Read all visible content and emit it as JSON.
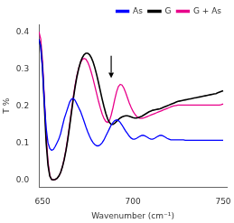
{
  "chart_data": {
    "type": "line",
    "xlabel": "Wavenumber (cm⁻¹)",
    "ylabel": "T %",
    "xlim": [
      648,
      752
    ],
    "ylim": [
      -0.02,
      0.42
    ],
    "xticks": [
      650,
      700,
      750
    ],
    "yticks": [
      {
        "value": 0.0,
        "label": "0.0"
      },
      0.1,
      0.2,
      0.3,
      0.4
    ],
    "grid": false,
    "legend": "upper right",
    "arrow": {
      "x": 688,
      "y_start": 0.335,
      "y_end": 0.275
    },
    "x": [
      648,
      649,
      650,
      651,
      652,
      653,
      654,
      655,
      656,
      657,
      658,
      659,
      660,
      661,
      662,
      663,
      664,
      665,
      666,
      667,
      668,
      669,
      670,
      671,
      672,
      673,
      674,
      675,
      676,
      677,
      678,
      679,
      680,
      681,
      682,
      683,
      684,
      685,
      686,
      687,
      688,
      689,
      690,
      691,
      692,
      693,
      694,
      695,
      696,
      697,
      698,
      699,
      700,
      701,
      702,
      703,
      704,
      705,
      706,
      707,
      708,
      709,
      710,
      711,
      712,
      713,
      714,
      715,
      716,
      717,
      718,
      719,
      720,
      721,
      722,
      723,
      724,
      725,
      726,
      727,
      728,
      729,
      730,
      731,
      732,
      733,
      734,
      735,
      736,
      737,
      738,
      739,
      740,
      741,
      742,
      743,
      744,
      745,
      746,
      747,
      748,
      749,
      750
    ],
    "series": [
      {
        "name": "As",
        "color": "#0000ff",
        "values": [
          0.38,
          0.36,
          0.3,
          0.21,
          0.14,
          0.1,
          0.085,
          0.08,
          0.082,
          0.09,
          0.1,
          0.11,
          0.125,
          0.145,
          0.165,
          0.18,
          0.195,
          0.21,
          0.218,
          0.22,
          0.215,
          0.205,
          0.195,
          0.185,
          0.172,
          0.158,
          0.143,
          0.13,
          0.118,
          0.108,
          0.1,
          0.095,
          0.092,
          0.092,
          0.095,
          0.1,
          0.108,
          0.118,
          0.128,
          0.138,
          0.148,
          0.155,
          0.16,
          0.162,
          0.16,
          0.155,
          0.148,
          0.14,
          0.132,
          0.125,
          0.118,
          0.113,
          0.11,
          0.11,
          0.112,
          0.115,
          0.118,
          0.12,
          0.12,
          0.118,
          0.115,
          0.112,
          0.11,
          0.11,
          0.112,
          0.115,
          0.118,
          0.12,
          0.12,
          0.118,
          0.115,
          0.112,
          0.11,
          0.108,
          0.108,
          0.108,
          0.108,
          0.108,
          0.108,
          0.108,
          0.108,
          0.107,
          0.107,
          0.107,
          0.107,
          0.107,
          0.107,
          0.107,
          0.107,
          0.107,
          0.107,
          0.107,
          0.107,
          0.107,
          0.107,
          0.107,
          0.107,
          0.107,
          0.107,
          0.107,
          0.107,
          0.107,
          0.107
        ]
      },
      {
        "name": "G",
        "color": "#000000",
        "values": [
          0.38,
          0.36,
          0.3,
          0.2,
          0.1,
          0.04,
          0.01,
          0.001,
          0.0,
          0.001,
          0.004,
          0.01,
          0.02,
          0.035,
          0.055,
          0.08,
          0.11,
          0.145,
          0.182,
          0.218,
          0.25,
          0.278,
          0.3,
          0.318,
          0.33,
          0.338,
          0.342,
          0.342,
          0.338,
          0.33,
          0.318,
          0.302,
          0.283,
          0.262,
          0.24,
          0.218,
          0.198,
          0.18,
          0.165,
          0.155,
          0.15,
          0.15,
          0.153,
          0.158,
          0.163,
          0.167,
          0.17,
          0.172,
          0.173,
          0.173,
          0.172,
          0.17,
          0.168,
          0.167,
          0.167,
          0.168,
          0.17,
          0.172,
          0.175,
          0.178,
          0.181,
          0.184,
          0.186,
          0.188,
          0.189,
          0.19,
          0.191,
          0.192,
          0.194,
          0.196,
          0.198,
          0.2,
          0.202,
          0.204,
          0.206,
          0.208,
          0.21,
          0.212,
          0.213,
          0.214,
          0.215,
          0.216,
          0.217,
          0.218,
          0.219,
          0.22,
          0.221,
          0.222,
          0.223,
          0.224,
          0.225,
          0.226,
          0.227,
          0.228,
          0.229,
          0.23,
          0.231,
          0.232,
          0.233,
          0.235,
          0.237,
          0.239,
          0.241
        ]
      },
      {
        "name": "G + As",
        "color": "#e8008a",
        "values": [
          0.4,
          0.38,
          0.32,
          0.22,
          0.12,
          0.05,
          0.012,
          0.001,
          0.0,
          0.001,
          0.004,
          0.01,
          0.02,
          0.036,
          0.057,
          0.083,
          0.115,
          0.15,
          0.188,
          0.224,
          0.256,
          0.282,
          0.302,
          0.316,
          0.325,
          0.328,
          0.326,
          0.318,
          0.306,
          0.29,
          0.272,
          0.252,
          0.232,
          0.212,
          0.194,
          0.178,
          0.166,
          0.158,
          0.155,
          0.16,
          0.175,
          0.195,
          0.218,
          0.238,
          0.252,
          0.258,
          0.256,
          0.248,
          0.236,
          0.222,
          0.208,
          0.196,
          0.186,
          0.178,
          0.172,
          0.168,
          0.166,
          0.166,
          0.167,
          0.169,
          0.171,
          0.173,
          0.175,
          0.177,
          0.179,
          0.181,
          0.183,
          0.185,
          0.187,
          0.189,
          0.191,
          0.193,
          0.195,
          0.197,
          0.199,
          0.2,
          0.201,
          0.202,
          0.202,
          0.202,
          0.202,
          0.202,
          0.202,
          0.202,
          0.202,
          0.202,
          0.202,
          0.202,
          0.202,
          0.202,
          0.202,
          0.202,
          0.202,
          0.202,
          0.202,
          0.202,
          0.202,
          0.202,
          0.202,
          0.202,
          0.202,
          0.203,
          0.205
        ]
      }
    ]
  }
}
